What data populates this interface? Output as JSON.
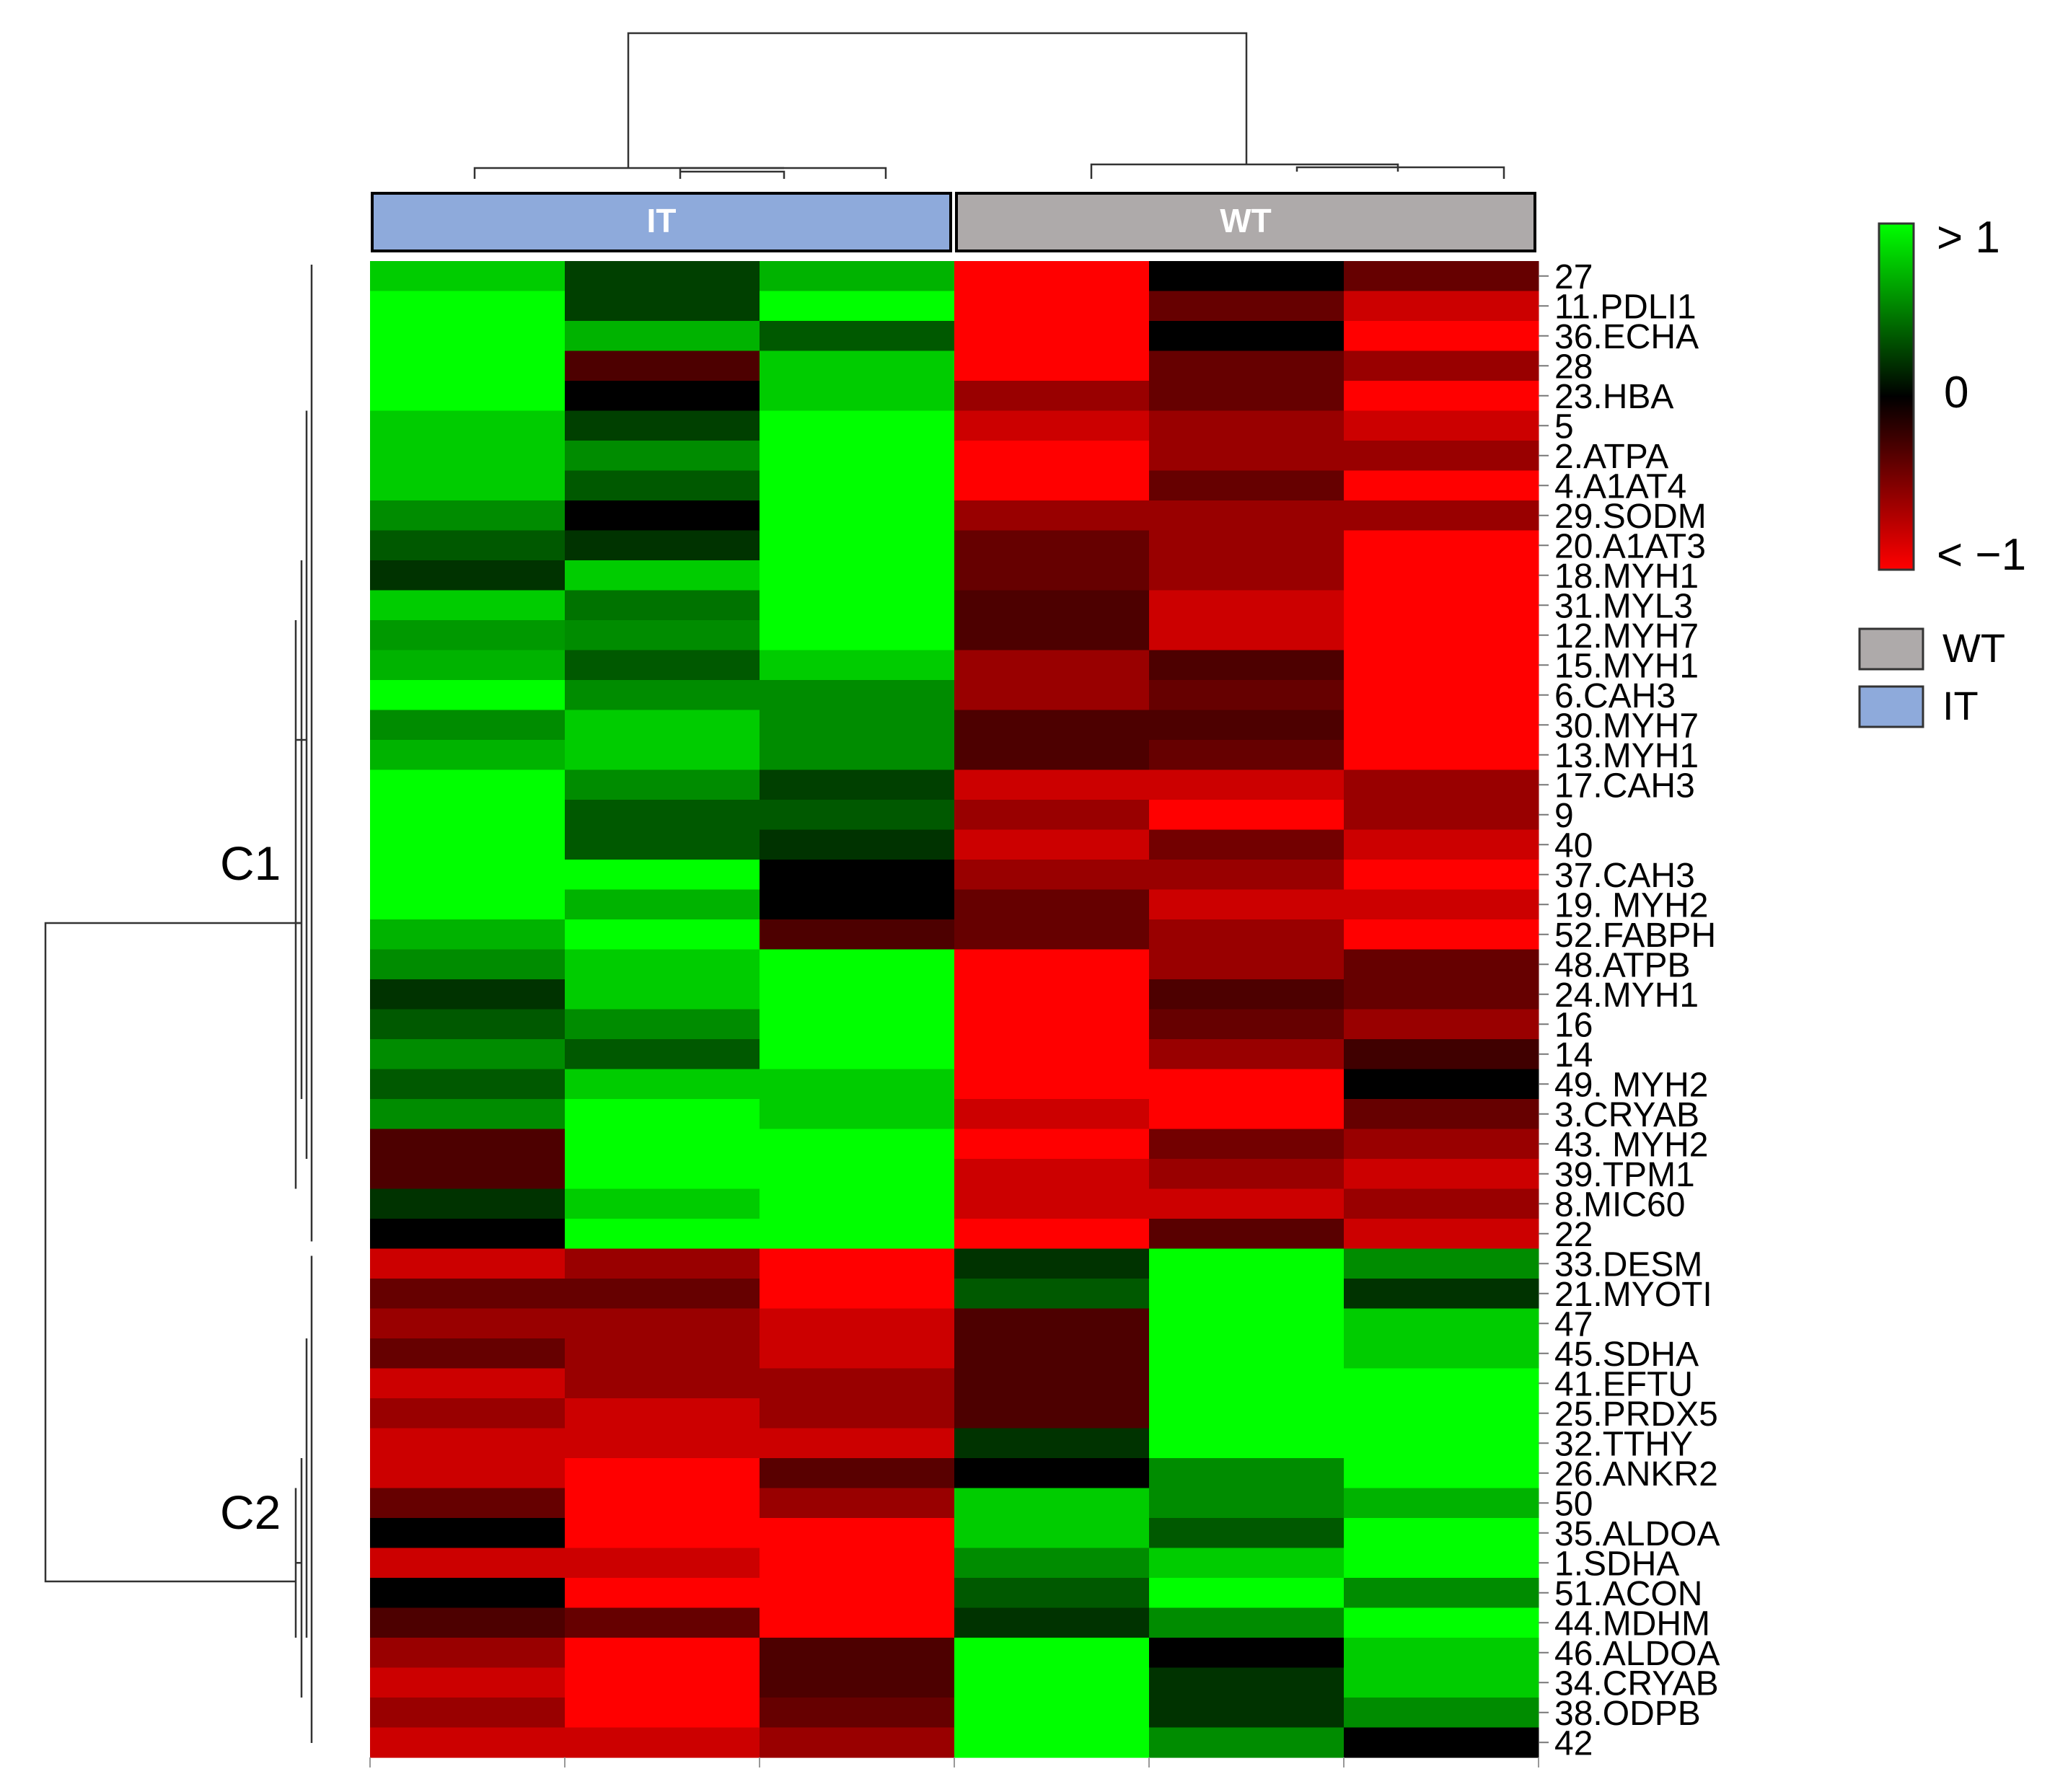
{
  "chart_data": {
    "type": "heatmap",
    "title": "",
    "groups": [
      {
        "label": "IT",
        "color": "#8eaadb",
        "columns": 3
      },
      {
        "label": "WT",
        "color": "#aeaaaa",
        "columns": 3
      }
    ],
    "clusters": [
      {
        "label": "C1",
        "rows": 33
      },
      {
        "label": "C2",
        "rows": 17
      }
    ],
    "row_labels": [
      "27",
      "11.PDLI1",
      "36.ECHA",
      "28",
      "23.HBA",
      "5",
      "2.ATPA",
      "4.A1AT4",
      "29.SODM",
      "20.A1AT3",
      "18.MYH1",
      "31.MYL3",
      "12.MYH7",
      "15.MYH1",
      "6.CAH3",
      "30.MYH7",
      "13.MYH1",
      "17.CAH3",
      "9",
      "40",
      "37.CAH3",
      "19. MYH2",
      "52.FABPH",
      "48.ATPB",
      "24.MYH1",
      "16",
      "14",
      "49. MYH2",
      "3.CRYAB",
      "43. MYH2",
      "39.TPM1",
      "8.MIC60",
      "22",
      "33.DESM",
      "21.MYOTI",
      "47",
      "45.SDHA",
      "41.EFTU",
      "25.PRDX5",
      "32.TTHY",
      "26.ANKR2",
      "50",
      "35.ALDOA",
      "1.SDHA",
      "51.ACON",
      "44.MDHM",
      "46.ALDOA",
      "34.CRYAB",
      "38.ODPB",
      "42"
    ],
    "values": [
      [
        0.8,
        0.25,
        0.7,
        -1.0,
        0.0,
        -0.4
      ],
      [
        1.0,
        0.25,
        1.0,
        -1.0,
        -0.4,
        -0.8
      ],
      [
        1.0,
        0.7,
        0.35,
        -1.0,
        0.0,
        -1.0
      ],
      [
        1.0,
        -0.3,
        0.8,
        -1.0,
        -0.4,
        -0.6
      ],
      [
        1.0,
        0.0,
        0.8,
        -0.6,
        -0.4,
        -1.0
      ],
      [
        0.8,
        0.25,
        1.0,
        -0.8,
        -0.6,
        -0.8
      ],
      [
        0.8,
        0.55,
        1.0,
        -1.0,
        -0.6,
        -0.6
      ],
      [
        0.8,
        0.35,
        1.0,
        -1.0,
        -0.4,
        -1.0
      ],
      [
        0.55,
        0.0,
        1.0,
        -0.6,
        -0.6,
        -0.6
      ],
      [
        0.35,
        0.2,
        1.0,
        -0.4,
        -0.6,
        -1.0
      ],
      [
        0.2,
        0.8,
        1.0,
        -0.4,
        -0.6,
        -1.0
      ],
      [
        0.8,
        0.45,
        1.0,
        -0.3,
        -0.8,
        -1.0
      ],
      [
        0.6,
        0.55,
        1.0,
        -0.3,
        -0.8,
        -1.0
      ],
      [
        0.7,
        0.35,
        0.8,
        -0.6,
        -0.3,
        -1.0
      ],
      [
        1.0,
        0.55,
        0.55,
        -0.6,
        -0.4,
        -1.0
      ],
      [
        0.55,
        0.8,
        0.55,
        -0.3,
        -0.3,
        -1.0
      ],
      [
        0.7,
        0.8,
        0.55,
        -0.3,
        -0.4,
        -1.0
      ],
      [
        1.0,
        0.55,
        0.25,
        -0.8,
        -0.8,
        -0.6
      ],
      [
        1.0,
        0.35,
        0.35,
        -0.6,
        -1.0,
        -0.6
      ],
      [
        1.0,
        0.35,
        0.2,
        -0.8,
        -0.45,
        -0.8
      ],
      [
        1.0,
        1.0,
        0.0,
        -0.6,
        -0.6,
        -1.0
      ],
      [
        1.0,
        0.7,
        0.0,
        -0.4,
        -0.8,
        -0.8
      ],
      [
        0.7,
        1.0,
        -0.3,
        -0.4,
        -0.6,
        -1.0
      ],
      [
        0.55,
        0.8,
        1.0,
        -1.0,
        -0.6,
        -0.4
      ],
      [
        0.2,
        0.8,
        1.0,
        -1.0,
        -0.3,
        -0.4
      ],
      [
        0.35,
        0.55,
        1.0,
        -1.0,
        -0.4,
        -0.6
      ],
      [
        0.55,
        0.35,
        1.0,
        -1.0,
        -0.6,
        -0.25
      ],
      [
        0.35,
        0.8,
        0.8,
        -1.0,
        -1.0,
        0.0
      ],
      [
        0.55,
        1.0,
        0.8,
        -0.8,
        -1.0,
        -0.4
      ],
      [
        -0.3,
        1.0,
        1.0,
        -1.0,
        -0.45,
        -0.6
      ],
      [
        -0.3,
        1.0,
        1.0,
        -0.8,
        -0.6,
        -0.8
      ],
      [
        0.2,
        0.8,
        1.0,
        -0.8,
        -0.8,
        -0.6
      ],
      [
        0.0,
        1.0,
        1.0,
        -1.0,
        -0.35,
        -0.8
      ],
      [
        -0.8,
        -0.6,
        -1.0,
        0.2,
        1.0,
        0.55
      ],
      [
        -0.4,
        -0.4,
        -1.0,
        0.35,
        1.0,
        0.2
      ],
      [
        -0.6,
        -0.6,
        -0.8,
        -0.3,
        1.0,
        0.8
      ],
      [
        -0.4,
        -0.6,
        -0.8,
        -0.3,
        1.0,
        0.8
      ],
      [
        -0.8,
        -0.6,
        -0.6,
        -0.3,
        1.0,
        1.0
      ],
      [
        -0.6,
        -0.8,
        -0.6,
        -0.3,
        1.0,
        1.0
      ],
      [
        -0.8,
        -0.8,
        -0.8,
        0.2,
        1.0,
        1.0
      ],
      [
        -0.8,
        -1.0,
        -0.35,
        0.0,
        0.55,
        1.0
      ],
      [
        -0.4,
        -1.0,
        -0.6,
        0.8,
        0.55,
        0.7
      ],
      [
        0.0,
        -1.0,
        -1.0,
        0.8,
        0.35,
        1.0
      ],
      [
        -0.8,
        -0.8,
        -1.0,
        0.55,
        0.8,
        1.0
      ],
      [
        0.0,
        -1.0,
        -1.0,
        0.35,
        1.0,
        0.55
      ],
      [
        -0.3,
        -0.4,
        -1.0,
        0.2,
        0.55,
        1.0
      ],
      [
        -0.6,
        -1.0,
        -0.3,
        1.0,
        0.0,
        0.8
      ],
      [
        -0.8,
        -1.0,
        -0.3,
        1.0,
        0.2,
        0.8
      ],
      [
        -0.6,
        -1.0,
        -0.4,
        1.0,
        0.2,
        0.55
      ],
      [
        -0.8,
        -0.8,
        -0.6,
        1.0,
        0.55,
        0.0
      ]
    ],
    "color_scale": {
      "min": -1,
      "max": 1,
      "low_color": "#ff0000",
      "mid_color": "#000000",
      "high_color": "#00ff00",
      "tick_labels": [
        "> 1",
        "0",
        "< −1"
      ]
    },
    "legend": [
      {
        "label": "WT",
        "color": "#aeaaaa"
      },
      {
        "label": "IT",
        "color": "#8eaadb"
      }
    ],
    "legend_position": "right"
  }
}
